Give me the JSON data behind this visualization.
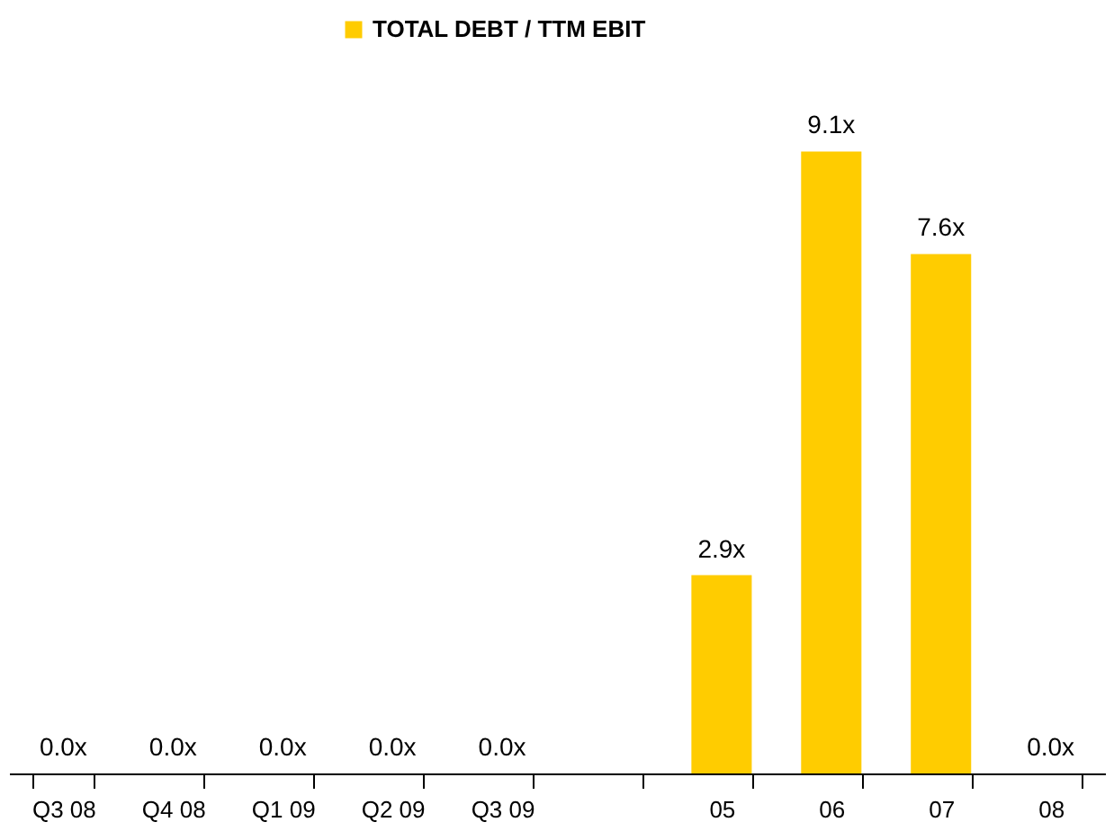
{
  "chart_data": {
    "type": "bar",
    "categories": [
      "Q3 08",
      "Q4 08",
      "Q1 09",
      "Q2 09",
      "Q3 09",
      null,
      "05",
      "06",
      "07",
      "08"
    ],
    "series": [
      {
        "name": "TOTAL DEBT / TTM EBIT",
        "color": "#ffcc00",
        "values": [
          0,
          0,
          0,
          0,
          0,
          null,
          2.9,
          9.1,
          7.6,
          0
        ],
        "value_labels": [
          "0.0x",
          "0.0x",
          "0.0x",
          "0.0x",
          "0.0x",
          null,
          "2.9x",
          "9.1x",
          "7.6x",
          "0.0x"
        ]
      }
    ],
    "legend": "top",
    "grid": false
  }
}
